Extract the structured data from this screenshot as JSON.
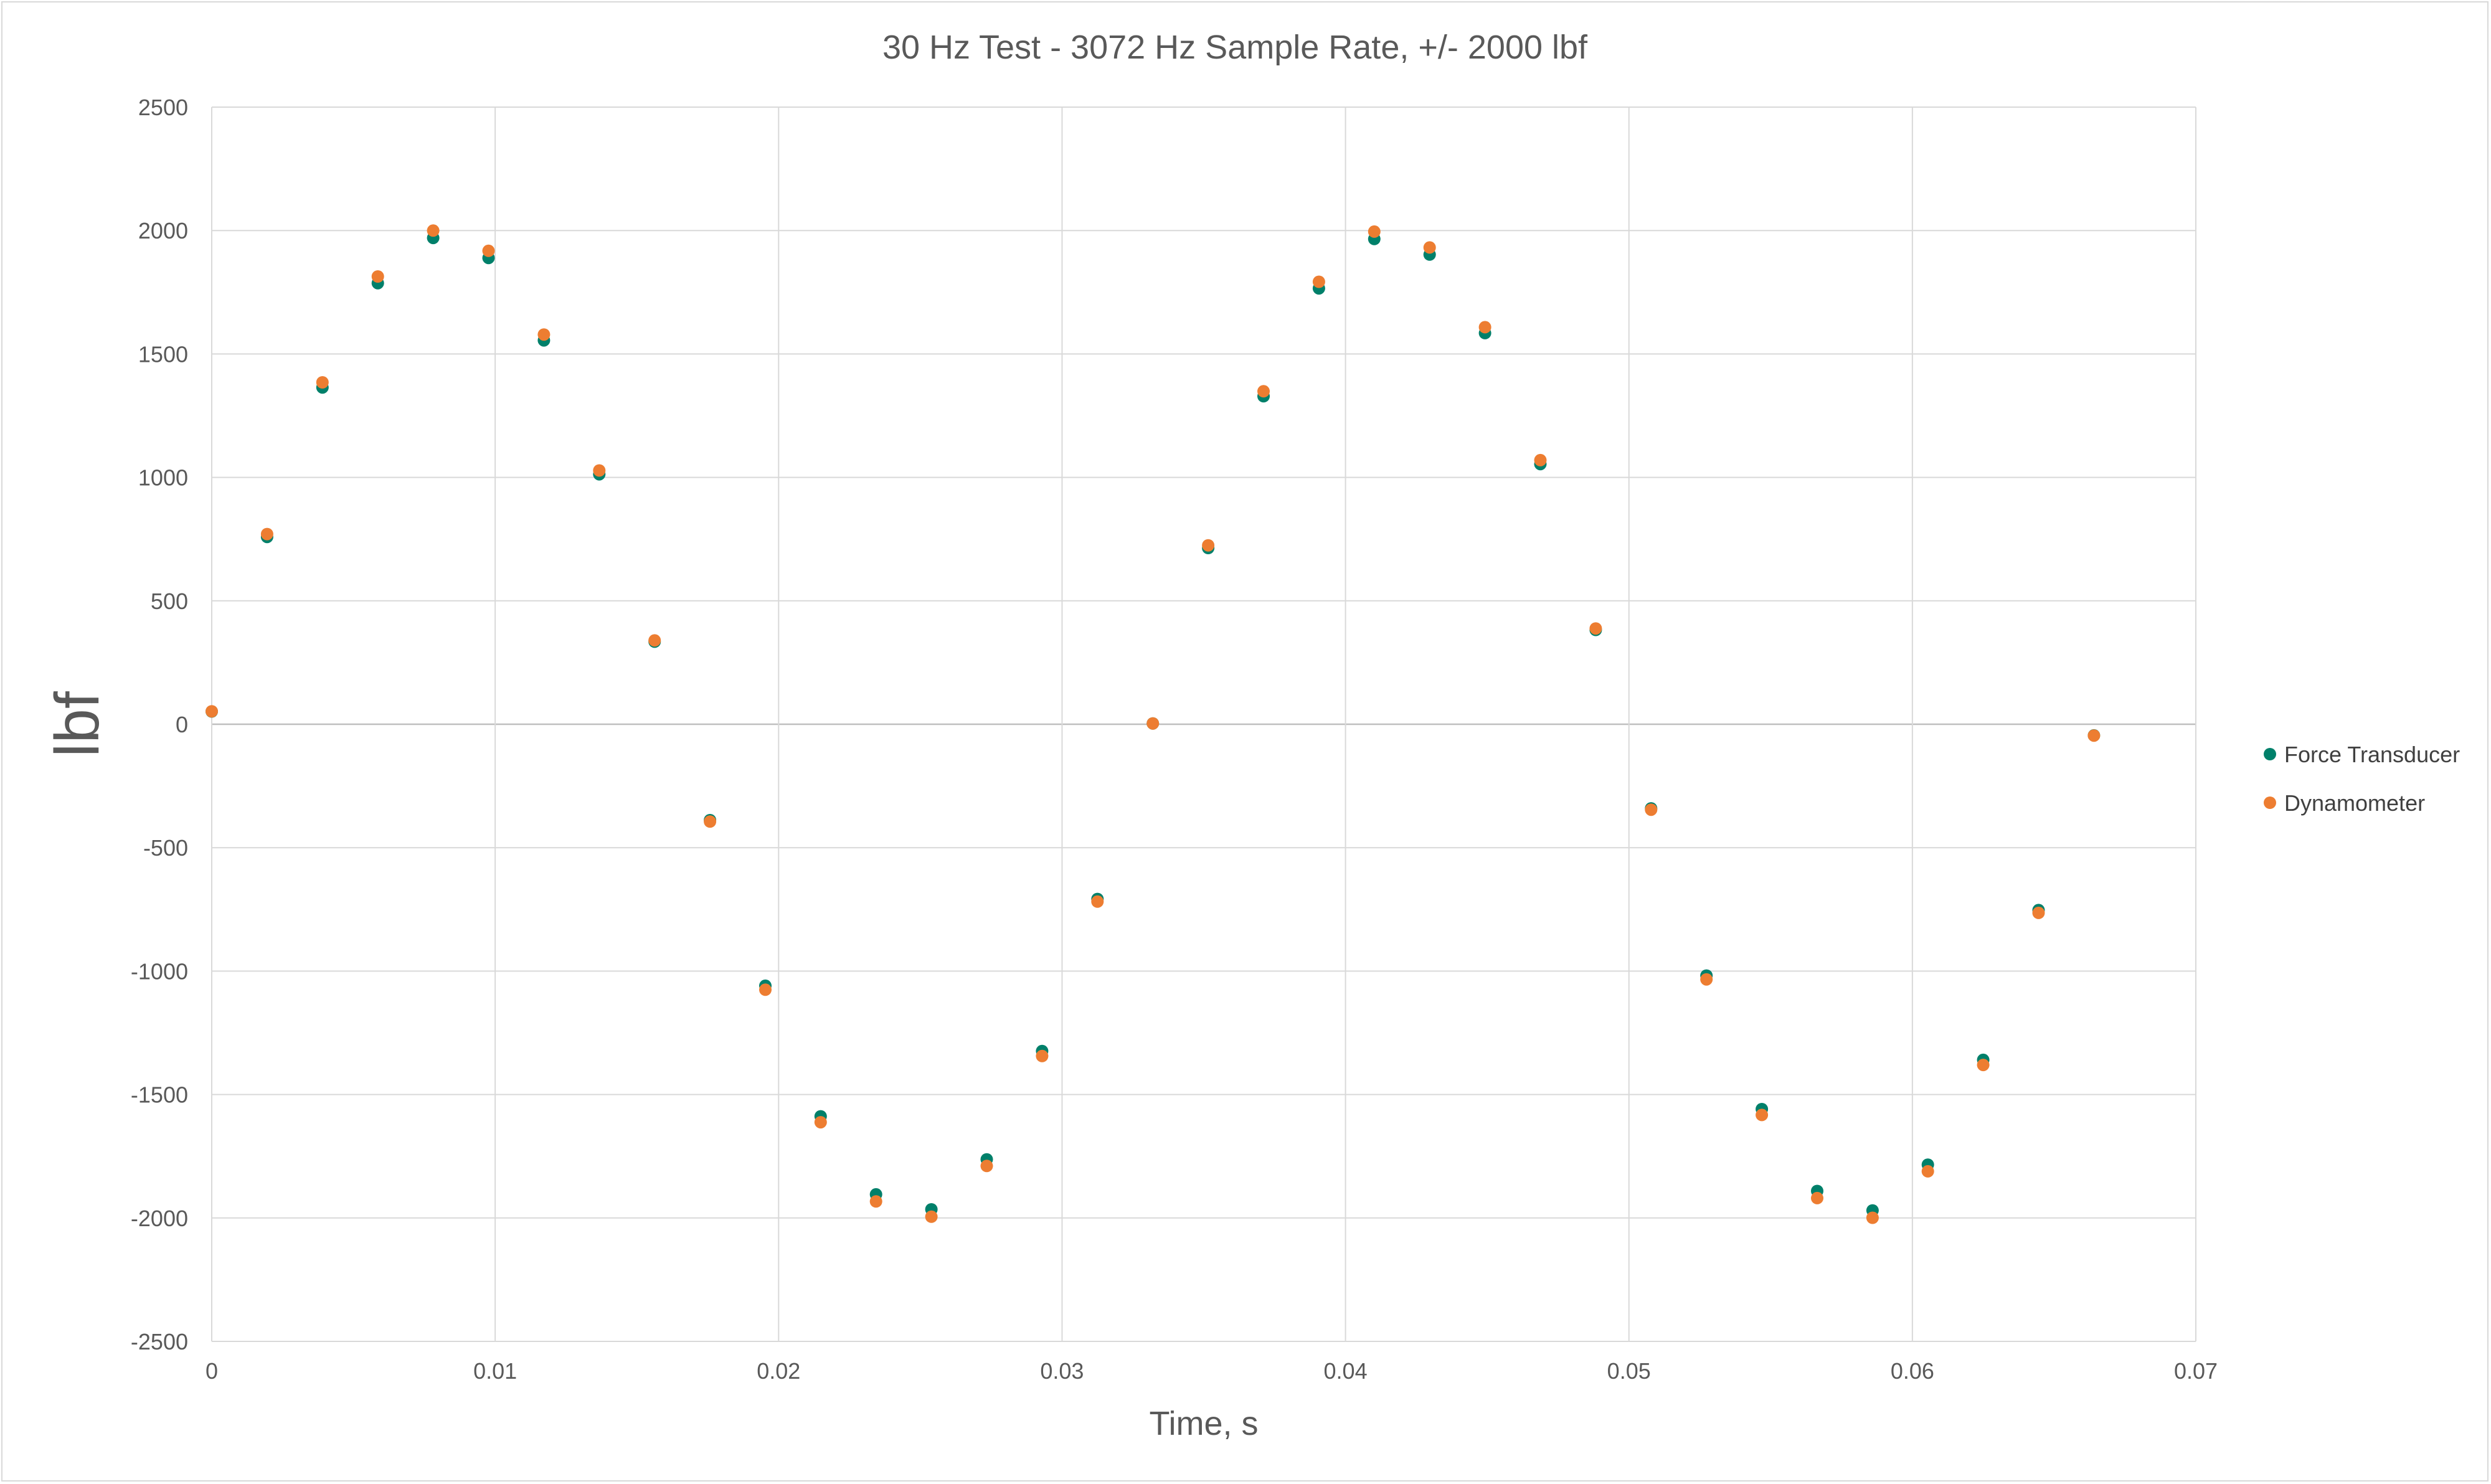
{
  "chart_data": {
    "type": "scatter",
    "title": "30 Hz Test - 3072 Hz Sample Rate, +/- 2000 lbf",
    "xlabel": "Time, s",
    "ylabel": "lbf",
    "xlim": [
      0,
      0.07
    ],
    "ylim": [
      -2500,
      2500
    ],
    "x_ticks": [
      0,
      0.01,
      0.02,
      0.03,
      0.04,
      0.05,
      0.06,
      0.07
    ],
    "y_ticks": [
      -2500,
      -2000,
      -1500,
      -1000,
      -500,
      0,
      500,
      1000,
      1500,
      2000,
      2500
    ],
    "x_tick_labels": [
      "0",
      "0.01",
      "0.02",
      "0.03",
      "0.04",
      "0.05",
      "0.06",
      "0.07"
    ],
    "y_tick_labels": [
      "-2500",
      "-2000",
      "-1500",
      "-1000",
      "-500",
      "0",
      "500",
      "1000",
      "1500",
      "2000",
      "2500"
    ],
    "grid": true,
    "legend_position": "right",
    "series": [
      {
        "name": "Force Transducer",
        "color": "#00806a",
        "marker": "circle",
        "signal": {
          "form": "sine",
          "frequency_hz": 30,
          "sample_rate_hz": 3072,
          "amplitude": 1975,
          "phase_deg": 1.5,
          "t_start": 0,
          "t_end": 0.0667
        }
      },
      {
        "name": "Dynamometer",
        "color": "#ed7d31",
        "marker": "circle",
        "signal": {
          "form": "sine",
          "frequency_hz": 30,
          "sample_rate_hz": 3072,
          "amplitude": 2005,
          "phase_deg": 1.5,
          "t_start": 0,
          "t_end": 0.0667
        }
      }
    ]
  }
}
